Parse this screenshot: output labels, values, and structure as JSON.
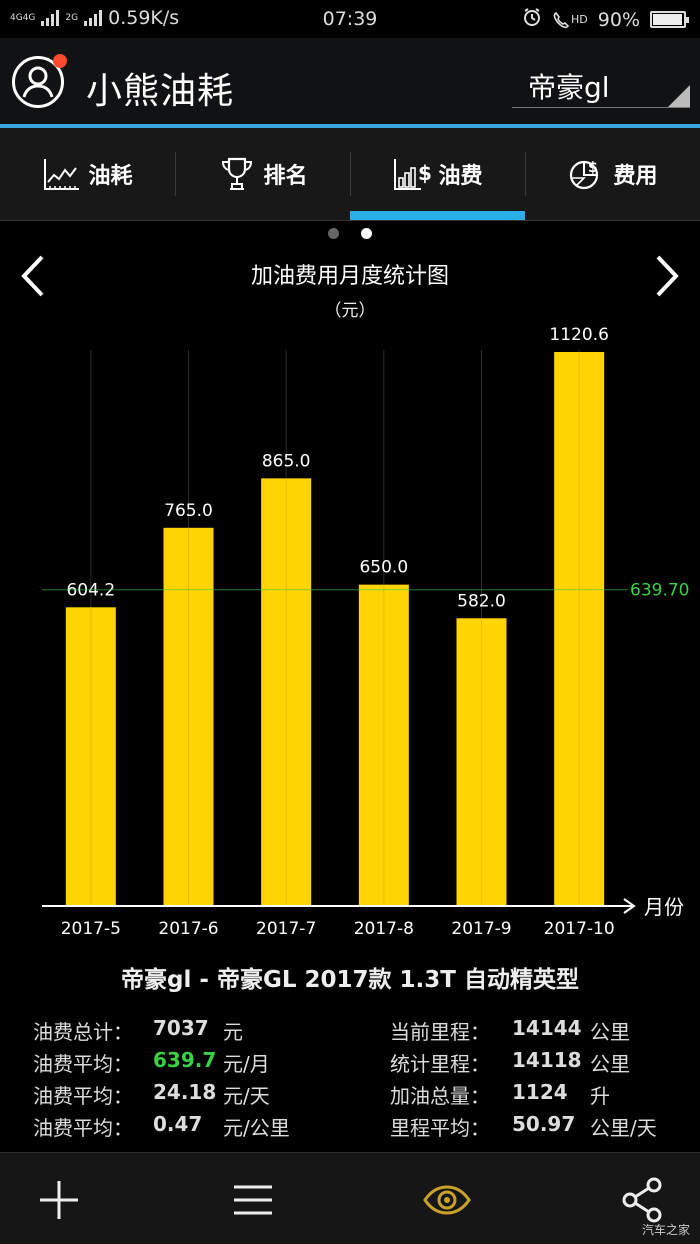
{
  "status_bar": {
    "network_a": "4G",
    "network_b": "4G",
    "network_c": "2G",
    "speed": "0.59K/s",
    "time": "07:39",
    "hd": "HD",
    "battery": "90%",
    "battery_level": 0.9
  },
  "header": {
    "app_title": "小熊油耗",
    "car_name": "帝豪gl"
  },
  "tabs": [
    {
      "label": "油耗",
      "icon": "line-chart-icon"
    },
    {
      "label": "排名",
      "icon": "trophy-icon"
    },
    {
      "label": "油费",
      "icon": "bar-chart-dollar-icon",
      "active": true
    },
    {
      "label": "费用",
      "icon": "pie-chart-dollar-icon"
    }
  ],
  "chart_header": {
    "title": "加油费用月度统计图",
    "unit": "（元）"
  },
  "chart_data": {
    "type": "bar",
    "categories": [
      "2017-5",
      "2017-6",
      "2017-7",
      "2017-8",
      "2017-9",
      "2017-10"
    ],
    "values": [
      604.2,
      765.0,
      865.0,
      650.0,
      582.0,
      1120.6
    ],
    "value_labels": [
      "604.2",
      "765.0",
      "865.0",
      "650.0",
      "582.0",
      "1120.6"
    ],
    "average": 639.7,
    "average_label": "639.70",
    "xlabel": "月份",
    "ylim": [
      0,
      1120.6
    ],
    "bar_color": "#ffd400",
    "average_color": "#39d141",
    "grid": "vertical"
  },
  "info": {
    "model": "帝豪gl - 帝豪GL 2017款 1.3T 自动精英型",
    "left_stats": [
      {
        "label": "油费总计：",
        "value": "7037",
        "unit": "元"
      },
      {
        "label": "油费平均：",
        "value": "639.7",
        "unit": "元/月",
        "highlight": true
      },
      {
        "label": "油费平均：",
        "value": "24.18",
        "unit": "元/天"
      },
      {
        "label": "油费平均：",
        "value": "0.47",
        "unit": "元/公里"
      }
    ],
    "right_stats": [
      {
        "label": "当前里程：",
        "value": "14144",
        "unit": "公里"
      },
      {
        "label": "统计里程：",
        "value": "14118",
        "unit": "公里"
      },
      {
        "label": "加油总量：",
        "value": "1124",
        "unit": "升"
      },
      {
        "label": "里程平均：",
        "value": "50.97",
        "unit": "公里/天"
      }
    ]
  },
  "bottom_bar": {
    "icons": [
      "plus-icon",
      "menu-icon",
      "eye-icon",
      "share-icon"
    ],
    "accent_color": "#c9a227"
  },
  "watermark": "汽车之家"
}
